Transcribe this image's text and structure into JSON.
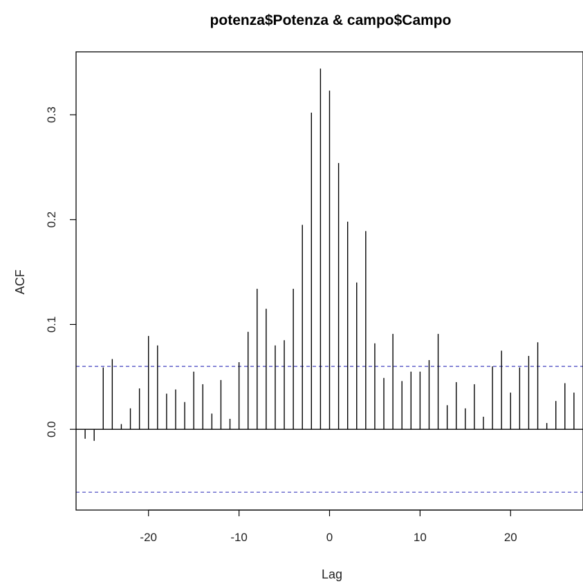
{
  "chart_data": {
    "type": "bar",
    "title": "potenza$Potenza & campo$Campo",
    "xlabel": "Lag",
    "ylabel": "ACF",
    "xlim": [
      -28,
      28
    ],
    "ylim": [
      -0.077,
      0.36
    ],
    "x_ticks": [
      -20,
      -10,
      0,
      10,
      20
    ],
    "x_tick_labels": [
      "-20",
      "-10",
      "0",
      "10",
      "20"
    ],
    "y_ticks": [
      0.0,
      0.1,
      0.2,
      0.3
    ],
    "y_tick_labels": [
      "0.0",
      "0.1",
      "0.2",
      "0.3"
    ],
    "grid": false,
    "zero_line": true,
    "confidence_bound": 0.06,
    "confidence_color": "#3f3fbf",
    "bar_color": "#000000",
    "lags": [
      -27,
      -26,
      -25,
      -24,
      -23,
      -22,
      -21,
      -20,
      -19,
      -18,
      -17,
      -16,
      -15,
      -14,
      -13,
      -12,
      -11,
      -10,
      -9,
      -8,
      -7,
      -6,
      -5,
      -4,
      -3,
      -2,
      -1,
      0,
      1,
      2,
      3,
      4,
      5,
      6,
      7,
      8,
      9,
      10,
      11,
      12,
      13,
      14,
      15,
      16,
      17,
      18,
      19,
      20,
      21,
      22,
      23,
      24,
      25,
      26,
      27
    ],
    "values": [
      -0.009,
      -0.011,
      0.059,
      0.067,
      0.005,
      0.02,
      0.039,
      0.089,
      0.08,
      0.034,
      0.038,
      0.026,
      0.055,
      0.043,
      0.015,
      0.047,
      0.01,
      0.064,
      0.093,
      0.134,
      0.115,
      0.08,
      0.085,
      0.134,
      0.195,
      0.302,
      0.344,
      0.323,
      0.254,
      0.198,
      0.14,
      0.189,
      0.082,
      0.049,
      0.091,
      0.046,
      0.055,
      0.055,
      0.066,
      0.091,
      0.023,
      0.045,
      0.02,
      0.043,
      0.012,
      0.06,
      0.075,
      0.035,
      0.059,
      0.07,
      0.083,
      0.006,
      0.027,
      0.044,
      0.035
    ]
  }
}
